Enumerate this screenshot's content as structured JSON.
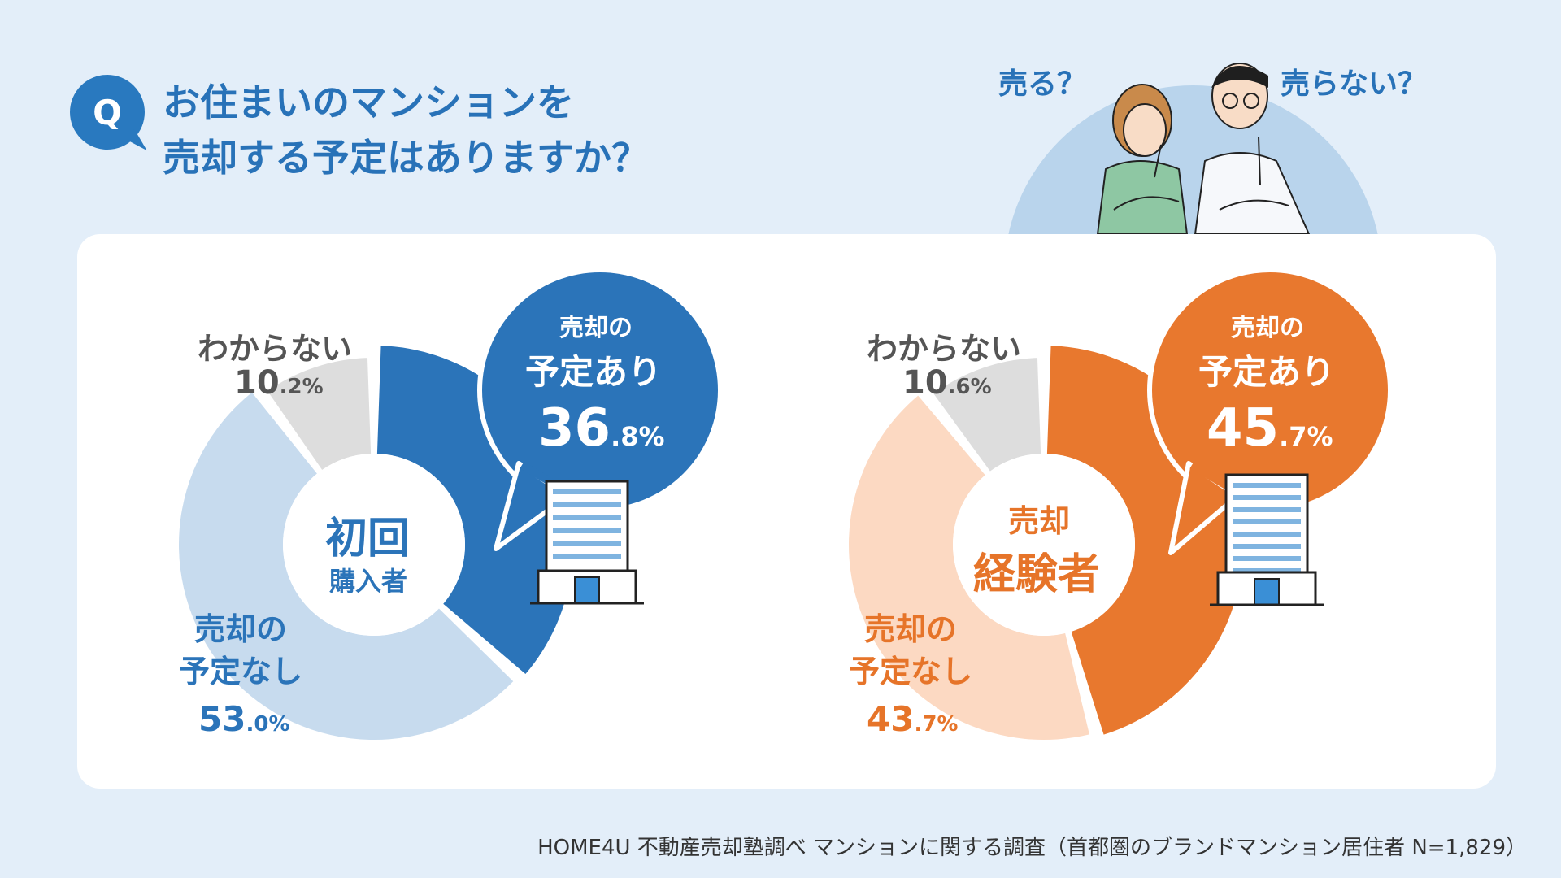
{
  "header": {
    "q_badge": "Q",
    "question_line1": "お住まいのマンションを",
    "question_line2": "売却する予定はありますか？",
    "sell_question": "売る？",
    "not_sell_question": "売らない？"
  },
  "source": "HOME4U 不動産売却塾調べ マンションに関する調査（首都圏のブランドマンション居住者 N=1,829）",
  "colors": {
    "blue": "#2b74b9",
    "blue_light": "#c7dbee",
    "orange": "#e8782e",
    "orange_light": "#fcd9c2",
    "gray": "#dddddd"
  },
  "chart_data": [
    {
      "type": "pie",
      "donut": true,
      "center_label_line1": "初回",
      "center_label_line2": "購入者",
      "slices": [
        {
          "label_line1": "売却の",
          "label_line2": "予定あり",
          "value": 36.8,
          "int": "36",
          "dec": ".8%"
        },
        {
          "label_line1": "売却の",
          "label_line2": "予定なし",
          "value": 53.0,
          "int": "53",
          "dec": ".0%"
        },
        {
          "label": "わからない",
          "value": 10.2,
          "int": "10",
          "dec": ".2%"
        }
      ]
    },
    {
      "type": "pie",
      "donut": true,
      "center_label_line1": "売却",
      "center_label_line2": "経験者",
      "slices": [
        {
          "label_line1": "売却の",
          "label_line2": "予定あり",
          "value": 45.7,
          "int": "45",
          "dec": ".7%"
        },
        {
          "label_line1": "売却の",
          "label_line2": "予定なし",
          "value": 43.7,
          "int": "43",
          "dec": ".7%"
        },
        {
          "label": "わからない",
          "value": 10.6,
          "int": "10",
          "dec": ".6%"
        }
      ]
    }
  ]
}
